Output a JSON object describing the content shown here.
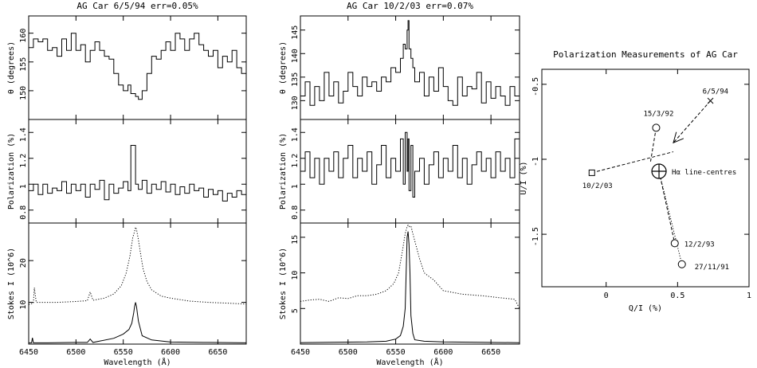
{
  "chart_data": [
    {
      "type": "line",
      "title": "AG Car 6/5/94 err=0.05%",
      "xlabel": "Wavelength (Å)",
      "xlim": [
        6450,
        6680
      ],
      "x_ticks": [
        "6450",
        "6500",
        "6550",
        "6600",
        "6650"
      ],
      "panels": [
        {
          "ylabel": "θ (degrees)",
          "ylim": [
            145,
            163
          ],
          "y_ticks": [
            "150",
            "155",
            "160"
          ],
          "series": [
            {
              "style": "step",
              "x": [
                6450,
                6455,
                6460,
                6465,
                6470,
                6475,
                6480,
                6485,
                6490,
                6495,
                6500,
                6505,
                6510,
                6515,
                6520,
                6525,
                6530,
                6535,
                6540,
                6545,
                6550,
                6555,
                6558,
                6563,
                6566,
                6570,
                6575,
                6580,
                6585,
                6590,
                6595,
                6600,
                6605,
                6610,
                6615,
                6620,
                6625,
                6630,
                6635,
                6640,
                6645,
                6650,
                6655,
                6660,
                6665,
                6670,
                6675
              ],
              "y": [
                157.5,
                159,
                158.5,
                159,
                157,
                157.5,
                156,
                159,
                157,
                160,
                157,
                158,
                155,
                157,
                158.5,
                157,
                156,
                155.5,
                153,
                151,
                150,
                151,
                149.5,
                149,
                148.5,
                150,
                153,
                156,
                155.5,
                157,
                158.5,
                157,
                160,
                159,
                157,
                159,
                160,
                158,
                157,
                156,
                157,
                154,
                156,
                155,
                157,
                154,
                153
              ]
            }
          ]
        },
        {
          "ylabel": "Polarization (%)",
          "ylim": [
            0.7,
            1.5
          ],
          "y_ticks": [
            "0.8",
            "1",
            "1.2",
            "1.4"
          ],
          "series": [
            {
              "style": "step",
              "x": [
                6450,
                6455,
                6460,
                6465,
                6470,
                6475,
                6480,
                6485,
                6490,
                6495,
                6500,
                6505,
                6510,
                6515,
                6520,
                6525,
                6530,
                6535,
                6540,
                6545,
                6550,
                6555,
                6558,
                6563,
                6566,
                6570,
                6575,
                6580,
                6585,
                6590,
                6595,
                6600,
                6605,
                6610,
                6615,
                6620,
                6625,
                6630,
                6635,
                6640,
                6645,
                6650,
                6655,
                6660,
                6665,
                6670,
                6675
              ],
              "y": [
                0.95,
                1.0,
                0.92,
                1.0,
                0.93,
                0.97,
                0.95,
                1.02,
                0.93,
                1.0,
                0.95,
                1.0,
                0.9,
                1.0,
                0.96,
                1.03,
                0.88,
                1.0,
                0.93,
                0.97,
                1.02,
                0.95,
                1.3,
                1.0,
                0.96,
                1.03,
                0.93,
                1.0,
                0.96,
                1.02,
                0.94,
                1.0,
                0.92,
                0.98,
                0.93,
                1.0,
                0.95,
                0.97,
                0.9,
                0.96,
                0.92,
                0.95,
                0.87,
                0.93,
                0.9,
                0.95,
                0.92
              ]
            }
          ]
        },
        {
          "ylabel": "Stokes I (10^6)",
          "ylim": [
            0,
            29
          ],
          "y_ticks": [
            "10",
            "20"
          ],
          "series": [
            {
              "style": "dotted",
              "x": [
                6450,
                6455,
                6456,
                6458,
                6460,
                6480,
                6500,
                6512,
                6515,
                6518,
                6530,
                6540,
                6548,
                6553,
                6557,
                6560,
                6562,
                6563,
                6564,
                6566,
                6568,
                6571,
                6575,
                6580,
                6590,
                6600,
                6620,
                6640,
                6660,
                6680
              ],
              "y": [
                9.5,
                9.8,
                13.5,
                10,
                10,
                10,
                10.2,
                10.4,
                12.5,
                10.5,
                11,
                12,
                14,
                17,
                21,
                25.5,
                27,
                28,
                27.5,
                25,
                22,
                18,
                15,
                13,
                11.5,
                11,
                10.3,
                10,
                9.8,
                9.6
              ]
            },
            {
              "style": "solid",
              "x": [
                6450,
                6453,
                6454,
                6455,
                6470,
                6500,
                6512,
                6515,
                6518,
                6540,
                6550,
                6556,
                6559,
                6561,
                6562,
                6563,
                6564,
                6566,
                6570,
                6580,
                6600,
                6640,
                6680
              ],
              "y": [
                0.3,
                0.3,
                1.5,
                0.3,
                0.3,
                0.4,
                0.4,
                1.2,
                0.4,
                1.4,
                2.4,
                3.5,
                5,
                7.5,
                9,
                10,
                9,
                5.5,
                2,
                1,
                0.5,
                0.4,
                0.3
              ]
            }
          ]
        }
      ]
    },
    {
      "type": "line",
      "title": "AG Car 10/2/03 err=0.07%",
      "xlabel": "Wavelength (Å)",
      "xlim": [
        6450,
        6680
      ],
      "x_ticks": [
        "6450",
        "6500",
        "6550",
        "6600",
        "6650"
      ],
      "panels": [
        {
          "ylabel": "θ (degrees)",
          "ylim": [
            126,
            148
          ],
          "y_ticks": [
            "130",
            "135",
            "140",
            "145"
          ],
          "series": [
            {
              "style": "step",
              "x": [
                6450,
                6455,
                6460,
                6465,
                6470,
                6475,
                6480,
                6485,
                6490,
                6495,
                6500,
                6505,
                6510,
                6515,
                6520,
                6525,
                6530,
                6535,
                6540,
                6545,
                6550,
                6555,
                6558,
                6560,
                6562,
                6563,
                6564,
                6566,
                6568,
                6570,
                6575,
                6580,
                6585,
                6590,
                6595,
                6600,
                6605,
                6610,
                6615,
                6620,
                6625,
                6630,
                6635,
                6640,
                6645,
                6650,
                6655,
                6660,
                6665,
                6670,
                6675
              ],
              "y": [
                131,
                134,
                129,
                133,
                130,
                136,
                131,
                134,
                129.5,
                132,
                136,
                133,
                131,
                135,
                133,
                134,
                132,
                135,
                134,
                137,
                136,
                139,
                142,
                141,
                145,
                147,
                141,
                139,
                137,
                134,
                136,
                131,
                135,
                132,
                137,
                133,
                130,
                129,
                135,
                131,
                133,
                132.5,
                136,
                129.5,
                134,
                130.5,
                133,
                131,
                129,
                133,
                131
              ]
            }
          ]
        },
        {
          "ylabel": "Polarization (%)",
          "ylim": [
            0.7,
            1.5
          ],
          "y_ticks": [
            "0.8",
            "1",
            "1.2",
            "1.4"
          ],
          "series": [
            {
              "style": "step",
              "x": [
                6450,
                6455,
                6460,
                6465,
                6470,
                6475,
                6480,
                6485,
                6490,
                6495,
                6500,
                6505,
                6510,
                6515,
                6520,
                6525,
                6530,
                6535,
                6540,
                6545,
                6550,
                6555,
                6558,
                6560,
                6562,
                6563,
                6564,
                6566,
                6568,
                6570,
                6575,
                6580,
                6585,
                6590,
                6595,
                6600,
                6605,
                6610,
                6615,
                6620,
                6625,
                6630,
                6635,
                6640,
                6645,
                6650,
                6655,
                6660,
                6665,
                6670,
                6675
              ],
              "y": [
                1.1,
                1.25,
                1.05,
                1.2,
                1.0,
                1.2,
                1.1,
                1.25,
                1.05,
                1.2,
                1.3,
                1.05,
                1.2,
                1.1,
                1.25,
                1.0,
                1.15,
                1.3,
                1.05,
                1.2,
                1.1,
                1.35,
                1.0,
                1.4,
                1.1,
                1.35,
                0.95,
                1.3,
                0.9,
                1.1,
                1.2,
                1.0,
                1.15,
                1.25,
                1.05,
                1.2,
                1.1,
                1.3,
                1.05,
                1.2,
                1.0,
                1.15,
                1.25,
                1.1,
                1.2,
                1.05,
                1.25,
                1.1,
                1.2,
                1.05,
                1.35
              ]
            }
          ]
        },
        {
          "ylabel": "Stokes I (10^6)",
          "ylim": [
            0,
            17
          ],
          "y_ticks": [
            "5",
            "10",
            "15"
          ],
          "series": [
            {
              "style": "dotted",
              "x": [
                6450,
                6460,
                6470,
                6480,
                6490,
                6500,
                6510,
                6520,
                6530,
                6540,
                6548,
                6553,
                6557,
                6560,
                6562,
                6563,
                6564,
                6566,
                6568,
                6571,
                6575,
                6580,
                6585,
                6590,
                6600,
                6620,
                6640,
                6660,
                6675,
                6680
              ],
              "y": [
                6,
                6.2,
                6.3,
                6,
                6.5,
                6.4,
                6.8,
                6.8,
                7,
                7.5,
                8.5,
                10,
                13,
                15.5,
                16.5,
                16.7,
                16.5,
                16.6,
                15.5,
                14,
                12,
                10,
                9.5,
                9,
                7.5,
                7,
                6.8,
                6.5,
                6.3,
                5
              ]
            },
            {
              "style": "solid",
              "x": [
                6450,
                6480,
                6520,
                6540,
                6550,
                6555,
                6558,
                6560,
                6561,
                6562,
                6563,
                6564,
                6565,
                6566,
                6568,
                6570,
                6580,
                6600,
                6640,
                6680
              ],
              "y": [
                0.2,
                0.25,
                0.3,
                0.4,
                0.7,
                1.2,
                2.5,
                5,
                10,
                15,
                15.8,
                14,
                10,
                4,
                1.5,
                0.6,
                0.4,
                0.3,
                0.25,
                0.2
              ]
            }
          ]
        }
      ]
    },
    {
      "type": "scatter",
      "title": "Polarization Measurements of AG Car",
      "xlabel": "Q/I (%)",
      "ylabel": "U/I (%)",
      "xlim": [
        -0.45,
        1.0
      ],
      "ylim": [
        -1.85,
        -0.4
      ],
      "x_ticks": [
        "0",
        "0.5",
        "1"
      ],
      "y_ticks": [
        "-0.5",
        "-1",
        "-1.5"
      ],
      "points": [
        {
          "label": "6/5/94",
          "x": 0.73,
          "y": -0.61,
          "marker": "cross"
        },
        {
          "label": "15/3/92",
          "x": 0.35,
          "y": -0.79,
          "marker": "circle"
        },
        {
          "label": "10/2/03",
          "x": -0.1,
          "y": -1.09,
          "marker": "square"
        },
        {
          "label": "Hα line-centres",
          "x": 0.37,
          "y": -1.08,
          "marker": "big-circle-cross"
        },
        {
          "label": "12/2/93",
          "x": 0.48,
          "y": -1.56,
          "marker": "circle"
        },
        {
          "label": "27/11/91",
          "x": 0.53,
          "y": -1.7,
          "marker": "circle"
        }
      ],
      "lines": [
        {
          "style": "dashed",
          "from": [
            -0.1,
            -1.09
          ],
          "to": [
            0.47,
            -0.95
          ]
        },
        {
          "style": "dashed",
          "from": [
            0.35,
            -0.79
          ],
          "to": [
            0.31,
            -1.02
          ]
        },
        {
          "style": "dashed",
          "from": [
            0.37,
            -1.08
          ],
          "to": [
            0.48,
            -1.56
          ]
        },
        {
          "style": "dotted",
          "from": [
            0.37,
            -1.08
          ],
          "to": [
            0.53,
            -1.7
          ]
        }
      ],
      "arrow": {
        "style": "dashed",
        "from": [
          0.73,
          -0.61
        ],
        "to": [
          0.47,
          -0.89
        ]
      }
    }
  ]
}
